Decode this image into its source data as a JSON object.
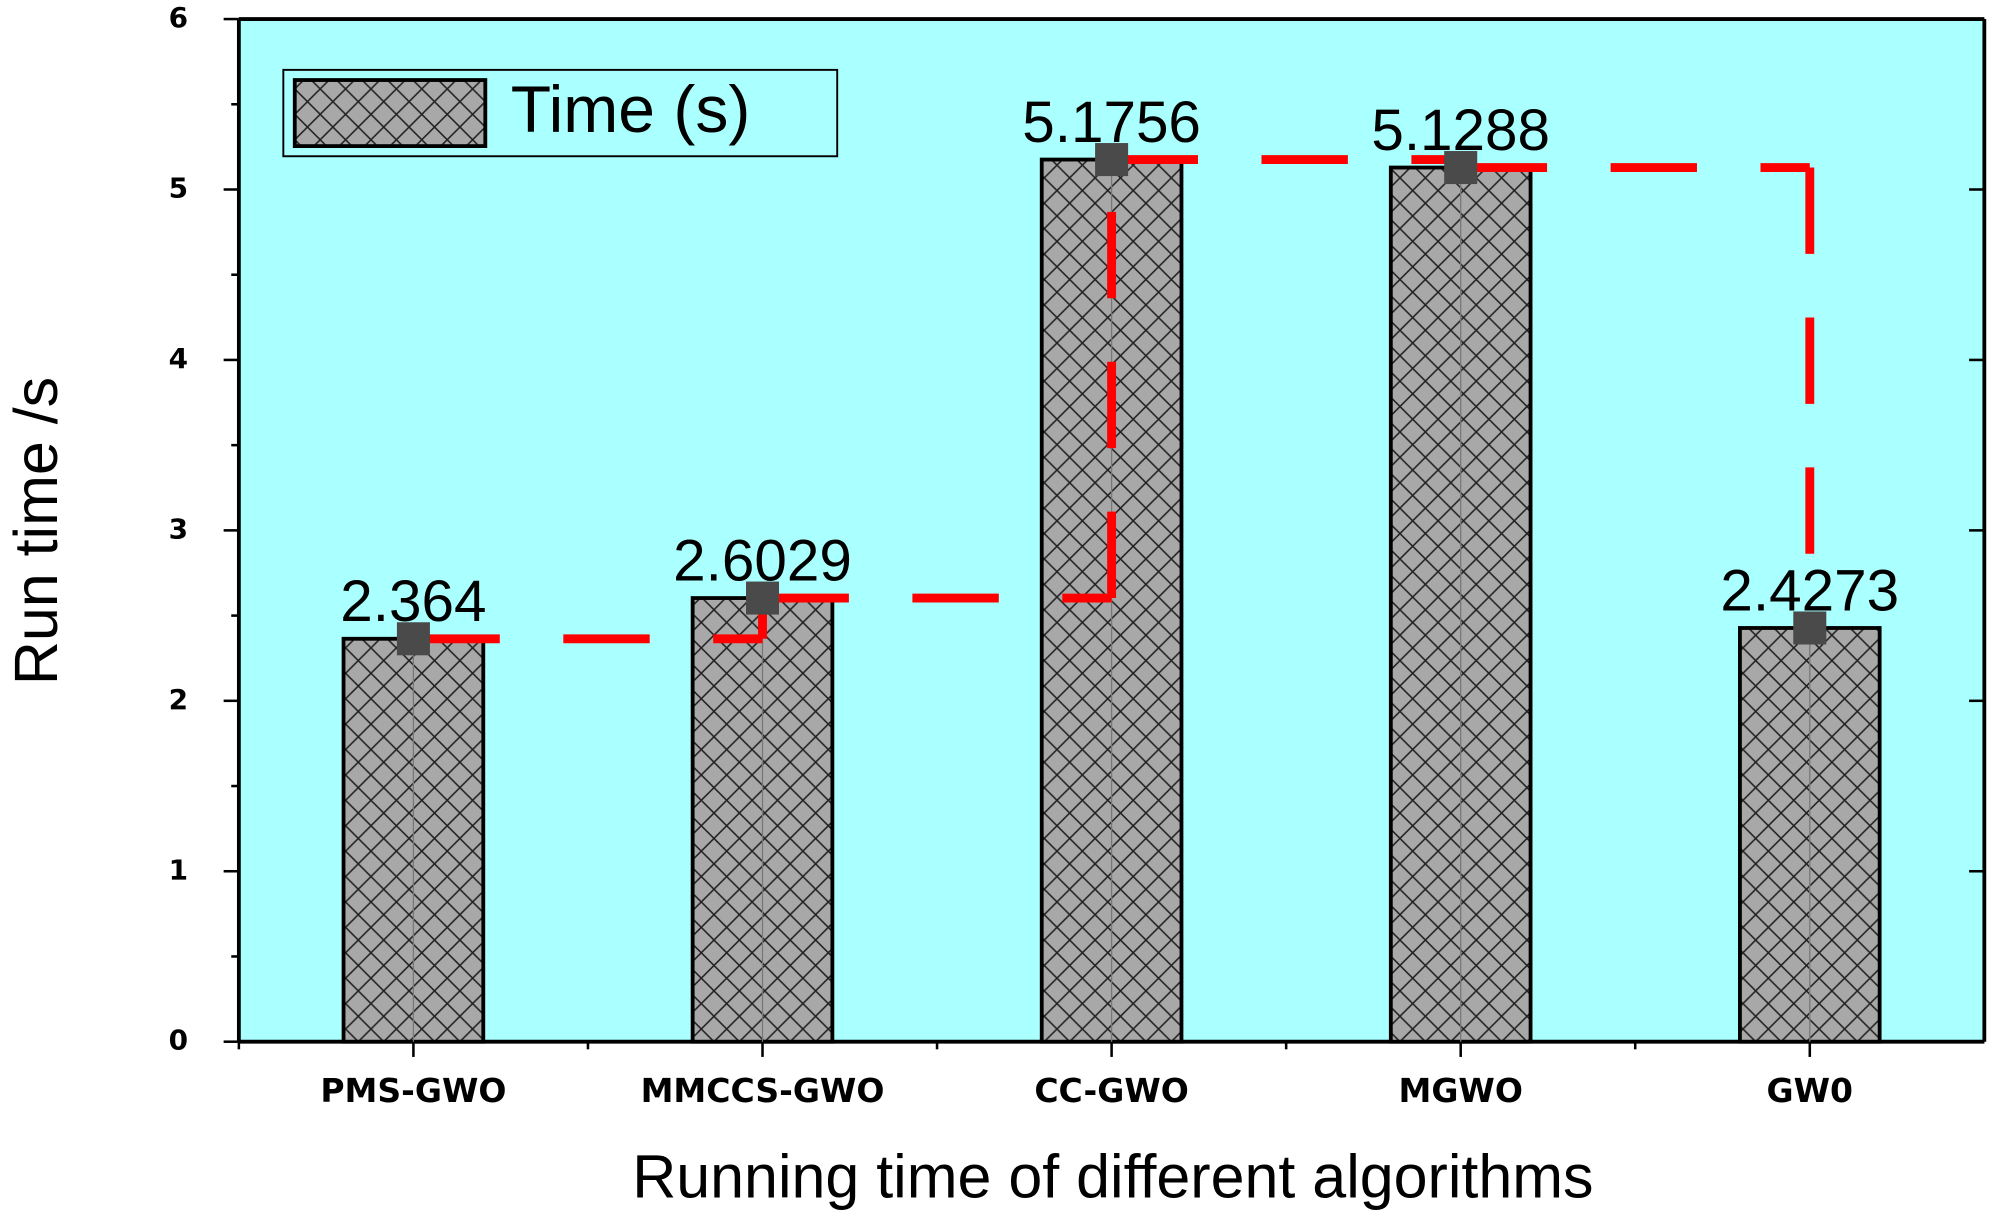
{
  "chart_data": {
    "type": "bar",
    "xlabel": "Running time of different algorithms",
    "ylabel": "Run time /s",
    "categories": [
      "PMS-GWO",
      "MMCCS-GWO",
      "CC-GWO",
      "MGWO",
      "GW0"
    ],
    "series": [
      {
        "name": "Time (s)",
        "color": "#a8a8a8",
        "line_color": "#ff0000",
        "marker_color": "#4a4a4a",
        "values": [
          2.364,
          2.6029,
          5.1756,
          5.1288,
          2.4273
        ]
      }
    ],
    "ylim": [
      0,
      6
    ],
    "yticks": [
      0,
      1,
      2,
      3,
      4,
      5,
      6
    ],
    "background": "#aaffff",
    "legend": "upper left"
  }
}
